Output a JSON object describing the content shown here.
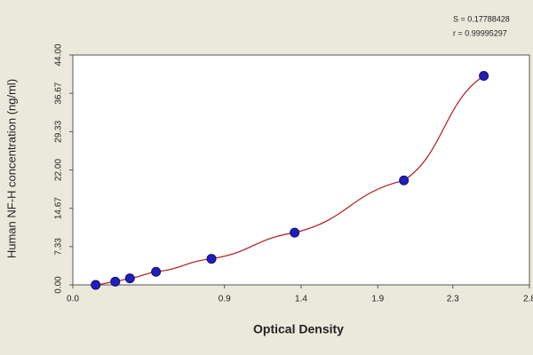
{
  "chart_data": {
    "type": "scatter",
    "x_label": "Optical Density",
    "y_label": "Human  NF-H concentration (ng/ml)",
    "annotations": [
      "S = 0.17788428",
      "r = 0.99995297"
    ],
    "series": [
      {
        "color": "#1f1fbf",
        "x": [
          0.14,
          0.26,
          0.35,
          0.51,
          0.85,
          1.36,
          2.03,
          2.52
        ],
        "values": [
          0,
          0.625,
          1.25,
          2.5,
          5,
          10,
          20,
          40
        ]
      }
    ],
    "fit_line_color": "#b01818",
    "xlim": [
      0,
      2.8
    ],
    "xticks": [
      {
        "value": 0,
        "label": "0.0"
      },
      {
        "value": 0.93,
        "label": "0.9"
      },
      {
        "value": 1.4,
        "label": "1.4"
      },
      {
        "value": 1.87,
        "label": "1.9"
      },
      {
        "value": 2.33,
        "label": "2.3"
      },
      {
        "value": 2.8,
        "label": "2.8"
      }
    ],
    "ylim": [
      0,
      44
    ],
    "yticks": [
      {
        "value": 0,
        "label": "0.00"
      },
      7.33,
      14.67,
      {
        "value": 22,
        "label": "22.00"
      },
      29.33,
      36.67,
      {
        "value": 44,
        "label": "44.00"
      }
    ]
  }
}
